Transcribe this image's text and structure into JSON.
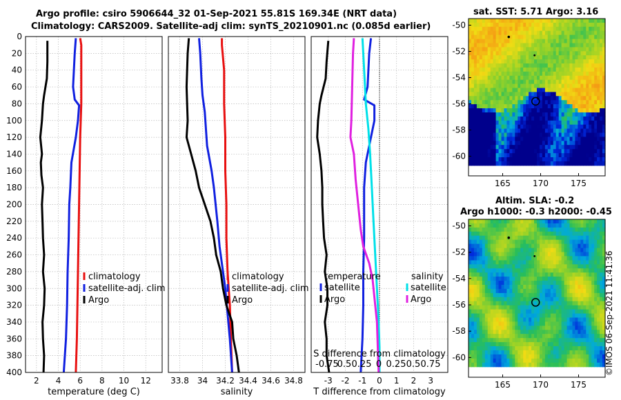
{
  "header": {
    "line1": "Argo profile: csiro 5906644_32 01-Sep-2021 55.81S 169.34E (NRT data)",
    "line2": "Climatology: CARS2009. Satellite-adj clim: synTS_20210901.nc (0.085d earlier)"
  },
  "copyright": "©IMOS 06-Sep-2021 11:41:36",
  "colors": {
    "argo": "#000000",
    "clim": "#e81010",
    "sat": "#1020e0",
    "tdiff": "#1020e0",
    "sdiff": "#00e0e8",
    "sdiff_argo": "#e020e0"
  },
  "chart_data": [
    {
      "id": "temperature",
      "type": "line",
      "xlabel": "temperature (deg C)",
      "ylabel": "",
      "xlim": [
        1,
        13.5
      ],
      "ylim": [
        0,
        400
      ],
      "xticks": [
        2,
        4,
        6,
        8,
        10,
        12
      ],
      "yticks": [
        0,
        20,
        40,
        60,
        80,
        100,
        120,
        140,
        160,
        180,
        200,
        220,
        240,
        260,
        280,
        300,
        320,
        340,
        360,
        380,
        400
      ],
      "legend": [
        "climatology",
        "satellite-adj. clim",
        "Argo"
      ],
      "series": [
        {
          "name": "climatology",
          "color": "#e81010",
          "points": [
            [
              6.0,
              2
            ],
            [
              6.1,
              10
            ],
            [
              6.1,
              40
            ],
            [
              6.1,
              80
            ],
            [
              6.0,
              120
            ],
            [
              5.95,
              160
            ],
            [
              5.9,
              200
            ],
            [
              5.85,
              240
            ],
            [
              5.8,
              280
            ],
            [
              5.75,
              320
            ],
            [
              5.7,
              360
            ],
            [
              5.6,
              400
            ]
          ]
        },
        {
          "name": "satellite-adj. clim",
          "color": "#1020e0",
          "points": [
            [
              5.6,
              2
            ],
            [
              5.5,
              20
            ],
            [
              5.35,
              60
            ],
            [
              5.5,
              75
            ],
            [
              5.9,
              82
            ],
            [
              5.8,
              100
            ],
            [
              5.6,
              120
            ],
            [
              5.2,
              150
            ],
            [
              5.1,
              180
            ],
            [
              5.0,
              200
            ],
            [
              4.95,
              240
            ],
            [
              4.85,
              280
            ],
            [
              4.8,
              320
            ],
            [
              4.7,
              360
            ],
            [
              4.5,
              400
            ]
          ]
        },
        {
          "name": "Argo",
          "color": "#000000",
          "points": [
            [
              3.0,
              5
            ],
            [
              3.0,
              30
            ],
            [
              2.95,
              50
            ],
            [
              2.7,
              70
            ],
            [
              2.6,
              80
            ],
            [
              2.5,
              100
            ],
            [
              2.35,
              120
            ],
            [
              2.5,
              140
            ],
            [
              2.4,
              150
            ],
            [
              2.45,
              165
            ],
            [
              2.6,
              180
            ],
            [
              2.5,
              200
            ],
            [
              2.55,
              220
            ],
            [
              2.6,
              240
            ],
            [
              2.7,
              260
            ],
            [
              2.6,
              280
            ],
            [
              2.75,
              300
            ],
            [
              2.7,
              320
            ],
            [
              2.55,
              340
            ],
            [
              2.6,
              360
            ],
            [
              2.7,
              380
            ],
            [
              2.65,
              400
            ]
          ]
        }
      ]
    },
    {
      "id": "salinity",
      "type": "line",
      "xlabel": "salinity",
      "xlim": [
        33.7,
        34.9
      ],
      "ylim": [
        0,
        400
      ],
      "xticks": [
        "33.8",
        "34",
        "34.2",
        "34.4",
        "34.6",
        "34.8"
      ],
      "legend": [
        "climatology",
        "satellite-adj. clim",
        "Argo"
      ],
      "series": [
        {
          "name": "climatology",
          "color": "#e81010",
          "points": [
            [
              34.17,
              2
            ],
            [
              34.17,
              10
            ],
            [
              34.19,
              40
            ],
            [
              34.19,
              80
            ],
            [
              34.2,
              120
            ],
            [
              34.2,
              160
            ],
            [
              34.21,
              200
            ],
            [
              34.21,
              240
            ],
            [
              34.22,
              280
            ],
            [
              34.24,
              320
            ],
            [
              34.25,
              360
            ],
            [
              34.26,
              400
            ]
          ]
        },
        {
          "name": "satellite-adj. clim",
          "color": "#1020e0",
          "points": [
            [
              33.97,
              2
            ],
            [
              33.98,
              20
            ],
            [
              33.99,
              50
            ],
            [
              34.0,
              70
            ],
            [
              34.02,
              90
            ],
            [
              34.04,
              130
            ],
            [
              34.08,
              160
            ],
            [
              34.1,
              180
            ],
            [
              34.13,
              220
            ],
            [
              34.15,
              250
            ],
            [
              34.18,
              280
            ],
            [
              34.2,
              300
            ],
            [
              34.22,
              330
            ],
            [
              34.24,
              360
            ],
            [
              34.26,
              400
            ]
          ]
        },
        {
          "name": "Argo",
          "color": "#000000",
          "points": [
            [
              33.88,
              2
            ],
            [
              33.87,
              20
            ],
            [
              33.86,
              60
            ],
            [
              33.87,
              100
            ],
            [
              33.86,
              120
            ],
            [
              33.9,
              140
            ],
            [
              33.94,
              160
            ],
            [
              33.97,
              180
            ],
            [
              34.02,
              200
            ],
            [
              34.07,
              220
            ],
            [
              34.1,
              240
            ],
            [
              34.12,
              260
            ],
            [
              34.16,
              280
            ],
            [
              34.18,
              300
            ],
            [
              34.21,
              320
            ],
            [
              34.26,
              340
            ],
            [
              34.27,
              360
            ],
            [
              34.3,
              380
            ],
            [
              34.32,
              400
            ]
          ]
        }
      ]
    },
    {
      "id": "differences",
      "type": "line",
      "xlabel": "T difference from climatology",
      "xlabel_top": "S difference from climatology",
      "xlim": [
        -4,
        4
      ],
      "ylim": [
        0,
        400
      ],
      "xticks": [
        "-3",
        "-2",
        "-1",
        "0",
        "1",
        "2",
        "3"
      ],
      "xticks_top": [
        "-0.75",
        "0.5",
        "0.25",
        "0",
        "0.25",
        "0.5",
        "0.75"
      ],
      "legend_t_title": "temperature",
      "legend_s_title": "salinity",
      "legend_entries": [
        "satellite",
        "Argo",
        "satellite",
        "Argo"
      ],
      "series": [
        {
          "name": "T satellite",
          "color": "#1020e0",
          "points": [
            [
              -0.5,
              2
            ],
            [
              -0.6,
              20
            ],
            [
              -0.7,
              60
            ],
            [
              -0.9,
              75
            ],
            [
              -0.3,
              82
            ],
            [
              -0.3,
              100
            ],
            [
              -0.5,
              120
            ],
            [
              -0.8,
              150
            ],
            [
              -0.9,
              180
            ],
            [
              -0.9,
              200
            ],
            [
              -0.9,
              240
            ],
            [
              -0.95,
              280
            ],
            [
              -0.95,
              320
            ],
            [
              -1.0,
              360
            ],
            [
              -1.1,
              400
            ]
          ]
        },
        {
          "name": "T Argo",
          "color": "#000000",
          "points": [
            [
              -3.0,
              5
            ],
            [
              -3.1,
              30
            ],
            [
              -3.15,
              50
            ],
            [
              -3.4,
              70
            ],
            [
              -3.5,
              80
            ],
            [
              -3.6,
              100
            ],
            [
              -3.65,
              120
            ],
            [
              -3.5,
              140
            ],
            [
              -3.4,
              160
            ],
            [
              -3.35,
              180
            ],
            [
              -3.35,
              200
            ],
            [
              -3.3,
              220
            ],
            [
              -3.25,
              240
            ],
            [
              -3.1,
              260
            ],
            [
              -3.2,
              280
            ],
            [
              -3.05,
              300
            ],
            [
              -3.05,
              320
            ],
            [
              -3.2,
              340
            ],
            [
              -3.1,
              360
            ],
            [
              -3.1,
              380
            ],
            [
              -2.95,
              400
            ]
          ]
        },
        {
          "name": "S satellite",
          "color": "#00e0e8",
          "points": [
            [
              -1.0,
              2
            ],
            [
              -0.95,
              20
            ],
            [
              -0.85,
              60
            ],
            [
              -0.8,
              80
            ],
            [
              -0.65,
              110
            ],
            [
              -0.55,
              140
            ],
            [
              -0.45,
              180
            ],
            [
              -0.35,
              220
            ],
            [
              -0.25,
              260
            ],
            [
              -0.15,
              300
            ],
            [
              -0.05,
              340
            ],
            [
              0.0,
              370
            ],
            [
              0.0,
              400
            ]
          ]
        },
        {
          "name": "S Argo",
          "color": "#e020e0",
          "points": [
            [
              -1.5,
              2
            ],
            [
              -1.55,
              20
            ],
            [
              -1.6,
              60
            ],
            [
              -1.65,
              100
            ],
            [
              -1.7,
              120
            ],
            [
              -1.5,
              140
            ],
            [
              -1.4,
              170
            ],
            [
              -1.25,
              200
            ],
            [
              -1.1,
              230
            ],
            [
              -0.95,
              250
            ],
            [
              -0.6,
              270
            ],
            [
              -0.4,
              290
            ],
            [
              -0.25,
              320
            ],
            [
              -0.15,
              340
            ],
            [
              -0.1,
              370
            ],
            [
              -0.05,
              400
            ]
          ]
        }
      ]
    },
    {
      "id": "sst_map",
      "type": "heatmap",
      "title": "sat. SST: 5.71 Argo: 3.16",
      "xlim": [
        160.5,
        178.5
      ],
      "ylim": [
        -61.5,
        -49.5
      ],
      "xticks": [
        "165",
        "170",
        "175"
      ],
      "yticks": [
        "-50",
        "-52",
        "-54",
        "-56",
        "-58",
        "-60"
      ],
      "profile_marker": [
        169.34,
        -55.81
      ]
    },
    {
      "id": "sla_map",
      "type": "heatmap",
      "title_line1": "Altim. SLA: -0.2",
      "title_line2": "Argo h1000: -0.3 h2000: -0.45",
      "xlim": [
        160.5,
        178.5
      ],
      "ylim": [
        -61.5,
        -49.5
      ],
      "xticks": [
        "165",
        "170",
        "175"
      ],
      "yticks": [
        "-50",
        "-52",
        "-54",
        "-56",
        "-58",
        "-60"
      ],
      "profile_marker": [
        169.34,
        -55.81
      ]
    }
  ]
}
